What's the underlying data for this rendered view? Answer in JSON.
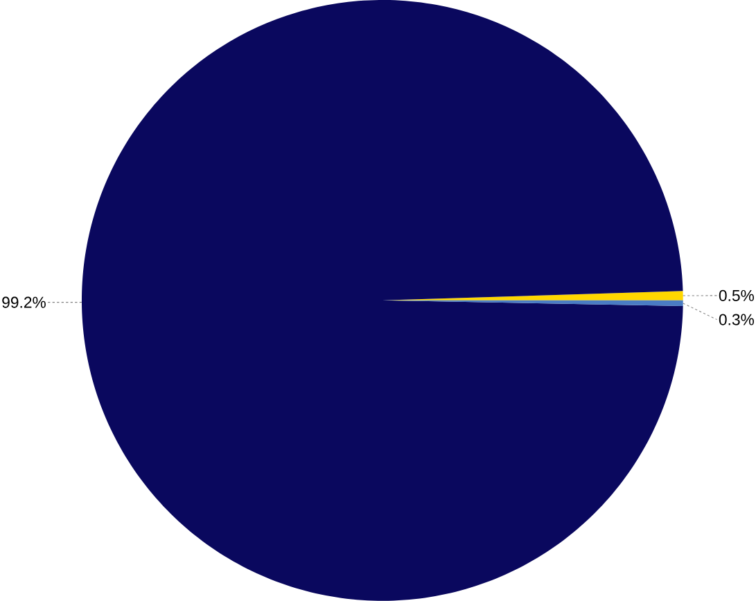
{
  "chart_data": {
    "type": "pie",
    "categories": [
      null,
      null,
      null
    ],
    "values": [
      0.5,
      99.2,
      0.3
    ],
    "colors": [
      "#ffd700",
      "#0a085e",
      "#4a7cc4"
    ],
    "value_labels": [
      "0.5%",
      "99.2%",
      "0.3%"
    ]
  }
}
